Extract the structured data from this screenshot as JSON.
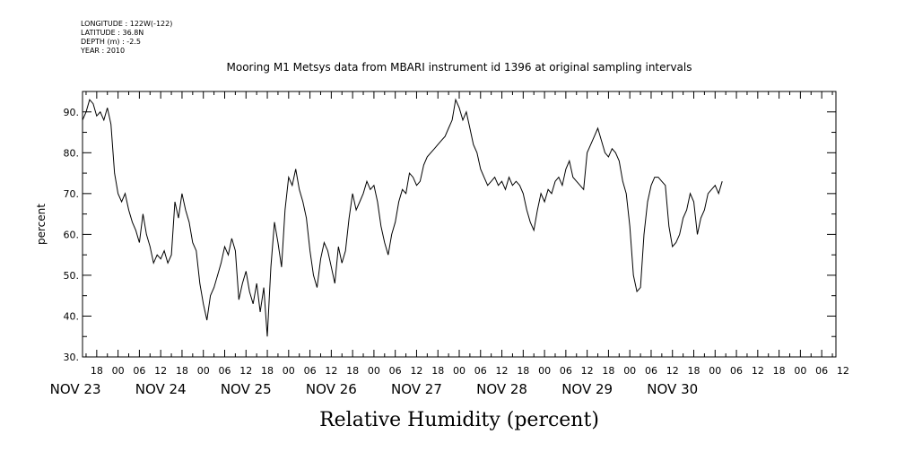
{
  "meta": {
    "longitude": "LONGITUDE : 122W(-122)",
    "latitude": "LATITUDE : 36.8N",
    "depth": "DEPTH (m) : -2.5",
    "year": "YEAR : 2010"
  },
  "chart_data": {
    "type": "line",
    "title": "Mooring M1 Metsys data from MBARI instrument id 1396 at original sampling intervals",
    "xlabel": "Relative Humidity (percent)",
    "ylabel": "percent",
    "ylim": [
      30,
      95
    ],
    "yticks": [
      30,
      40,
      50,
      60,
      70,
      80,
      90
    ],
    "grid": false,
    "x_unit": "hours from NOV 23 00:00 (2010)",
    "xlim": [
      14,
      226
    ],
    "hour_ticks": [
      {
        "t": 18,
        "label": "18"
      },
      {
        "t": 24,
        "label": "00"
      },
      {
        "t": 30,
        "label": "06"
      },
      {
        "t": 36,
        "label": "12"
      },
      {
        "t": 42,
        "label": "18"
      },
      {
        "t": 48,
        "label": "00"
      },
      {
        "t": 54,
        "label": "06"
      },
      {
        "t": 60,
        "label": "12"
      },
      {
        "t": 66,
        "label": "18"
      },
      {
        "t": 72,
        "label": "00"
      },
      {
        "t": 78,
        "label": "06"
      },
      {
        "t": 84,
        "label": "12"
      },
      {
        "t": 90,
        "label": "18"
      },
      {
        "t": 96,
        "label": "00"
      },
      {
        "t": 102,
        "label": "06"
      },
      {
        "t": 108,
        "label": "12"
      },
      {
        "t": 114,
        "label": "18"
      },
      {
        "t": 120,
        "label": "00"
      },
      {
        "t": 126,
        "label": "06"
      },
      {
        "t": 132,
        "label": "12"
      },
      {
        "t": 138,
        "label": "18"
      },
      {
        "t": 144,
        "label": "00"
      },
      {
        "t": 150,
        "label": "06"
      },
      {
        "t": 156,
        "label": "12"
      },
      {
        "t": 162,
        "label": "18"
      },
      {
        "t": 168,
        "label": "00"
      },
      {
        "t": 174,
        "label": "06"
      },
      {
        "t": 180,
        "label": "12"
      },
      {
        "t": 186,
        "label": "18"
      },
      {
        "t": 192,
        "label": "00"
      },
      {
        "t": 198,
        "label": "06"
      },
      {
        "t": 204,
        "label": "12"
      },
      {
        "t": 210,
        "label": "18"
      },
      {
        "t": 216,
        "label": "00"
      },
      {
        "t": 222,
        "label": "06"
      },
      {
        "t": 228,
        "label": "12"
      }
    ],
    "day_labels": [
      {
        "t": 12,
        "label": "NOV 23"
      },
      {
        "t": 36,
        "label": "NOV 24"
      },
      {
        "t": 60,
        "label": "NOV 25"
      },
      {
        "t": 84,
        "label": "NOV 26"
      },
      {
        "t": 108,
        "label": "NOV 27"
      },
      {
        "t": 132,
        "label": "NOV 28"
      },
      {
        "t": 156,
        "label": "NOV 29"
      },
      {
        "t": 180,
        "label": "NOV 30"
      }
    ],
    "series": [
      {
        "points": [
          [
            14,
            88
          ],
          [
            15,
            90
          ],
          [
            16,
            93
          ],
          [
            17,
            92
          ],
          [
            18,
            89
          ],
          [
            19,
            90
          ],
          [
            20,
            88
          ],
          [
            21,
            91
          ],
          [
            22,
            87
          ],
          [
            22.5,
            81
          ],
          [
            23,
            75
          ],
          [
            24,
            70
          ],
          [
            25,
            68
          ],
          [
            26,
            70
          ],
          [
            27,
            66
          ],
          [
            28,
            63
          ],
          [
            29,
            61
          ],
          [
            30,
            58
          ],
          [
            31,
            65
          ],
          [
            32,
            60
          ],
          [
            33,
            57
          ],
          [
            34,
            53
          ],
          [
            35,
            55
          ],
          [
            36,
            54
          ],
          [
            37,
            56
          ],
          [
            38,
            53
          ],
          [
            39,
            55
          ],
          [
            40,
            68
          ],
          [
            41,
            64
          ],
          [
            42,
            70
          ],
          [
            43,
            66
          ],
          [
            44,
            63
          ],
          [
            45,
            58
          ],
          [
            46,
            56
          ],
          [
            47,
            48
          ],
          [
            48,
            43
          ],
          [
            49,
            39
          ],
          [
            50,
            45
          ],
          [
            51,
            47
          ],
          [
            52,
            50
          ],
          [
            53,
            53
          ],
          [
            54,
            57
          ],
          [
            55,
            55
          ],
          [
            56,
            59
          ],
          [
            57,
            56
          ],
          [
            58,
            44
          ],
          [
            59,
            48
          ],
          [
            60,
            51
          ],
          [
            61,
            46
          ],
          [
            62,
            43
          ],
          [
            63,
            48
          ],
          [
            64,
            41
          ],
          [
            65,
            47
          ],
          [
            66,
            35
          ],
          [
            67,
            52
          ],
          [
            68,
            63
          ],
          [
            69,
            58
          ],
          [
            70,
            52
          ],
          [
            71,
            66
          ],
          [
            72,
            74
          ],
          [
            73,
            72
          ],
          [
            74,
            76
          ],
          [
            75,
            71
          ],
          [
            76,
            68
          ],
          [
            77,
            64
          ],
          [
            78,
            56
          ],
          [
            79,
            50
          ],
          [
            80,
            47
          ],
          [
            81,
            54
          ],
          [
            82,
            58
          ],
          [
            83,
            56
          ],
          [
            84,
            52
          ],
          [
            85,
            48
          ],
          [
            86,
            57
          ],
          [
            87,
            53
          ],
          [
            88,
            56
          ],
          [
            89,
            64
          ],
          [
            90,
            70
          ],
          [
            91,
            66
          ],
          [
            92,
            68
          ],
          [
            93,
            70
          ],
          [
            94,
            73
          ],
          [
            95,
            71
          ],
          [
            96,
            72
          ],
          [
            97,
            68
          ],
          [
            98,
            62
          ],
          [
            99,
            58
          ],
          [
            100,
            55
          ],
          [
            101,
            60
          ],
          [
            102,
            63
          ],
          [
            103,
            68
          ],
          [
            104,
            71
          ],
          [
            105,
            70
          ],
          [
            106,
            75
          ],
          [
            107,
            74
          ],
          [
            108,
            72
          ],
          [
            109,
            73
          ],
          [
            110,
            77
          ],
          [
            111,
            79
          ],
          [
            112,
            80
          ],
          [
            113,
            81
          ],
          [
            114,
            82
          ],
          [
            115,
            83
          ],
          [
            116,
            84
          ],
          [
            117,
            86
          ],
          [
            118,
            88
          ],
          [
            119,
            93
          ],
          [
            120,
            91
          ],
          [
            121,
            88
          ],
          [
            122,
            90
          ],
          [
            123,
            86
          ],
          [
            124,
            82
          ],
          [
            125,
            80
          ],
          [
            126,
            76
          ],
          [
            127,
            74
          ],
          [
            128,
            72
          ],
          [
            129,
            73
          ],
          [
            130,
            74
          ],
          [
            131,
            72
          ],
          [
            132,
            73
          ],
          [
            133,
            71
          ],
          [
            134,
            74
          ],
          [
            135,
            72
          ],
          [
            136,
            73
          ],
          [
            137,
            72
          ],
          [
            138,
            70
          ],
          [
            139,
            66
          ],
          [
            140,
            63
          ],
          [
            141,
            61
          ],
          [
            142,
            66
          ],
          [
            143,
            70
          ],
          [
            144,
            68
          ],
          [
            145,
            71
          ],
          [
            146,
            70
          ],
          [
            147,
            73
          ],
          [
            148,
            74
          ],
          [
            149,
            72
          ],
          [
            150,
            76
          ],
          [
            151,
            78
          ],
          [
            152,
            74
          ],
          [
            153,
            73
          ],
          [
            154,
            72
          ],
          [
            155,
            71
          ],
          [
            156,
            80
          ],
          [
            157,
            82
          ],
          [
            158,
            84
          ],
          [
            159,
            86
          ],
          [
            160,
            83
          ],
          [
            161,
            80
          ],
          [
            162,
            79
          ],
          [
            163,
            81
          ],
          [
            164,
            80
          ],
          [
            165,
            78
          ],
          [
            166,
            73
          ],
          [
            167,
            70
          ],
          [
            168,
            62
          ],
          [
            169,
            50
          ],
          [
            170,
            46
          ],
          [
            171,
            47
          ],
          [
            172,
            60
          ],
          [
            173,
            68
          ],
          [
            174,
            72
          ],
          [
            175,
            74
          ],
          [
            176,
            74
          ],
          [
            177,
            73
          ],
          [
            178,
            72
          ],
          [
            179,
            62
          ],
          [
            180,
            57
          ],
          [
            181,
            58
          ],
          [
            182,
            60
          ],
          [
            183,
            64
          ],
          [
            184,
            66
          ],
          [
            185,
            70
          ],
          [
            186,
            68
          ],
          [
            187,
            60
          ],
          [
            188,
            64
          ],
          [
            189,
            66
          ],
          [
            190,
            70
          ],
          [
            191,
            71
          ],
          [
            192,
            72
          ],
          [
            193,
            70
          ],
          [
            194,
            73
          ]
        ]
      }
    ]
  }
}
